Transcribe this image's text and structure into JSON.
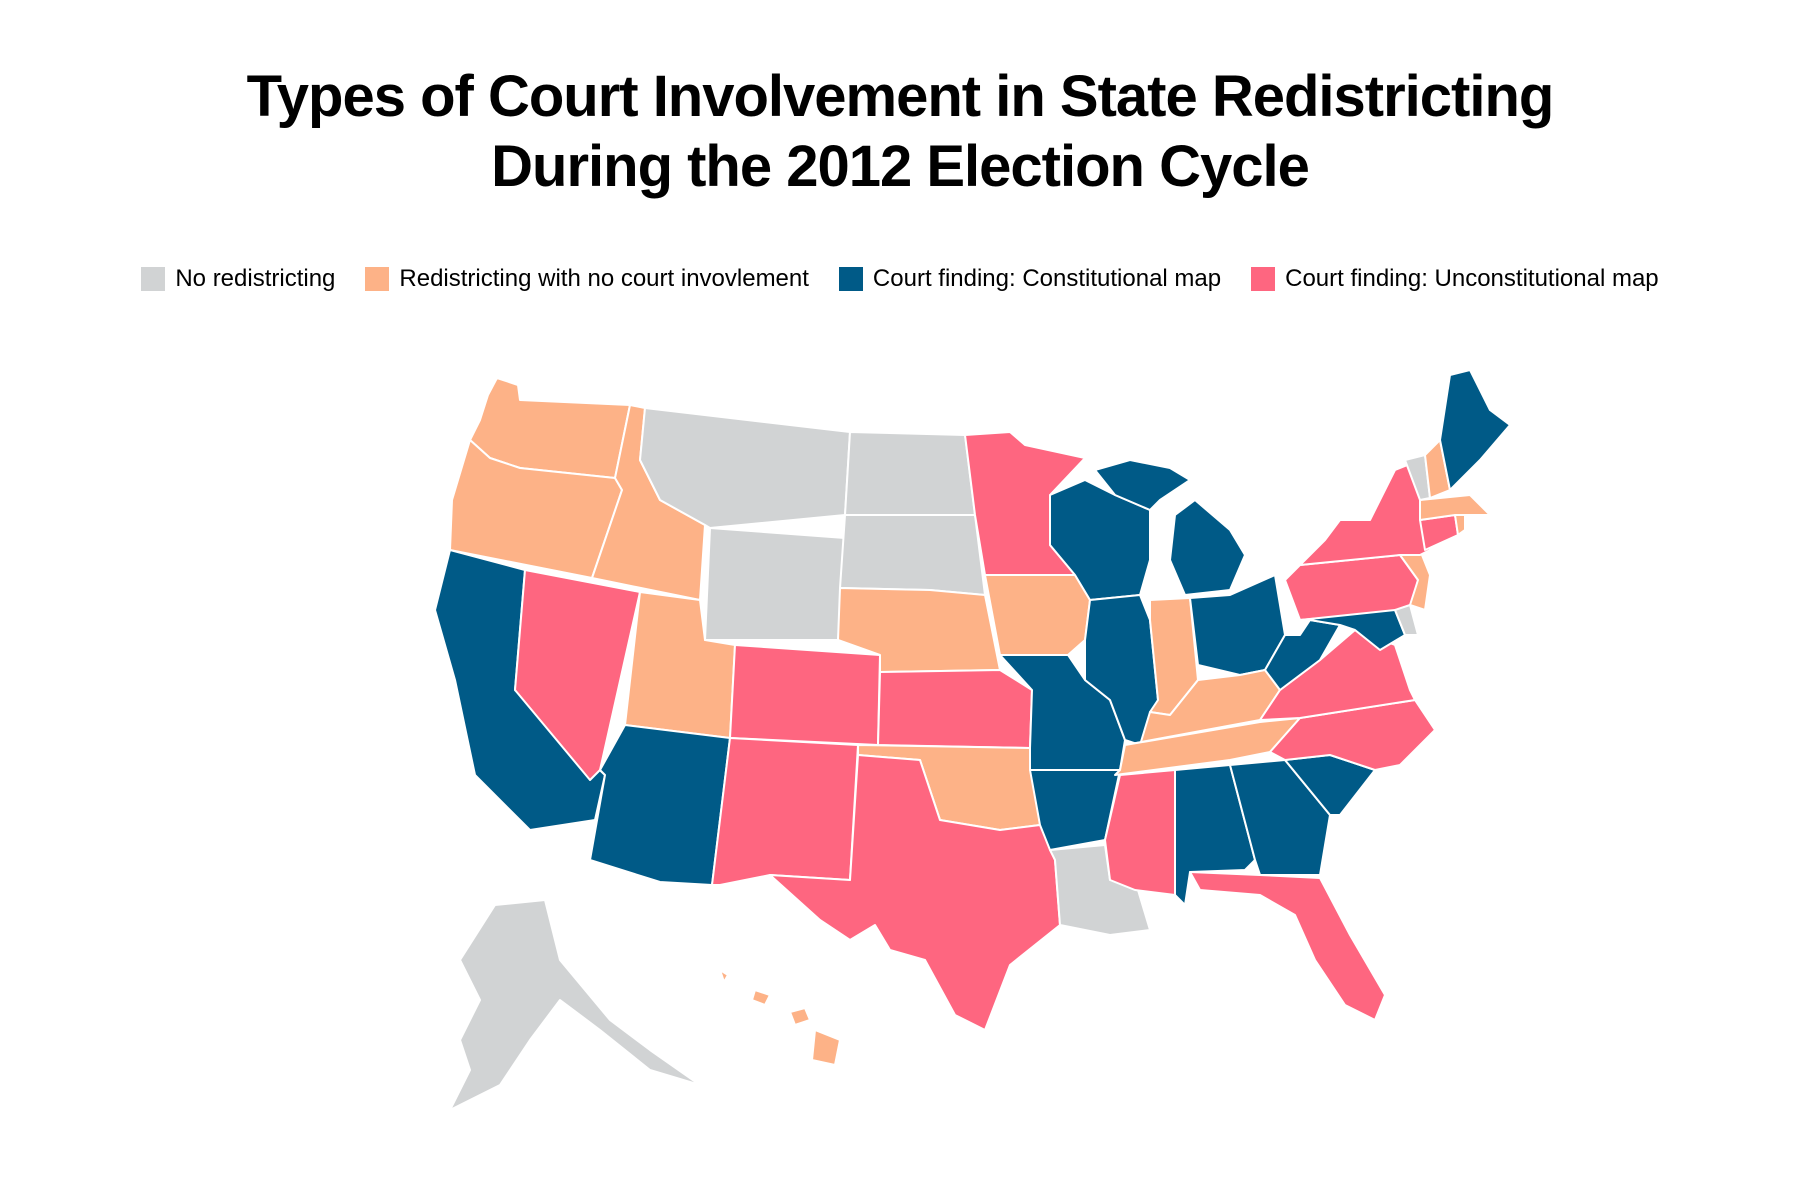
{
  "title": {
    "line1": "Types of Court Involvement in State Redistricting",
    "line2": "During the 2012 Election Cycle"
  },
  "legend": [
    {
      "key": "none",
      "label": "No redistricting",
      "color": "#d1d3d4"
    },
    {
      "key": "nocourt",
      "label": "Redistricting with no court invovlement",
      "color": "#fdb287"
    },
    {
      "key": "const",
      "label": "Court finding: Constitutional map",
      "color": "#005a87"
    },
    {
      "key": "unconst",
      "label": "Court finding: Unconstitutional map",
      "color": "#fe6680"
    }
  ],
  "states": {
    "WA": "nocourt",
    "OR": "nocourt",
    "ID": "nocourt",
    "UT": "nocourt",
    "NE": "nocourt",
    "IA": "nocourt",
    "IN": "nocourt",
    "KY": "nocourt",
    "TN": "nocourt",
    "OK": "nocourt",
    "NH": "nocourt",
    "MA": "nocourt",
    "RI": "nocourt",
    "NJ": "nocourt",
    "HI": "nocourt",
    "MT": "none",
    "WY": "none",
    "ND": "none",
    "SD": "none",
    "LA": "none",
    "VT": "none",
    "DE": "none",
    "AK": "none",
    "CA": "const",
    "AZ": "const",
    "MO": "const",
    "AR": "const",
    "WI": "const",
    "IL": "const",
    "MI": "const",
    "OH": "const",
    "WV": "const",
    "AL": "const",
    "GA": "const",
    "SC": "const",
    "MD": "const",
    "ME": "const",
    "NV": "unconst",
    "CO": "unconst",
    "NM": "unconst",
    "KS": "unconst",
    "TX": "unconst",
    "MN": "unconst",
    "MS": "unconst",
    "FL": "unconst",
    "NC": "unconst",
    "VA": "unconst",
    "PA": "unconst",
    "NY": "unconst",
    "CT": "unconst"
  }
}
